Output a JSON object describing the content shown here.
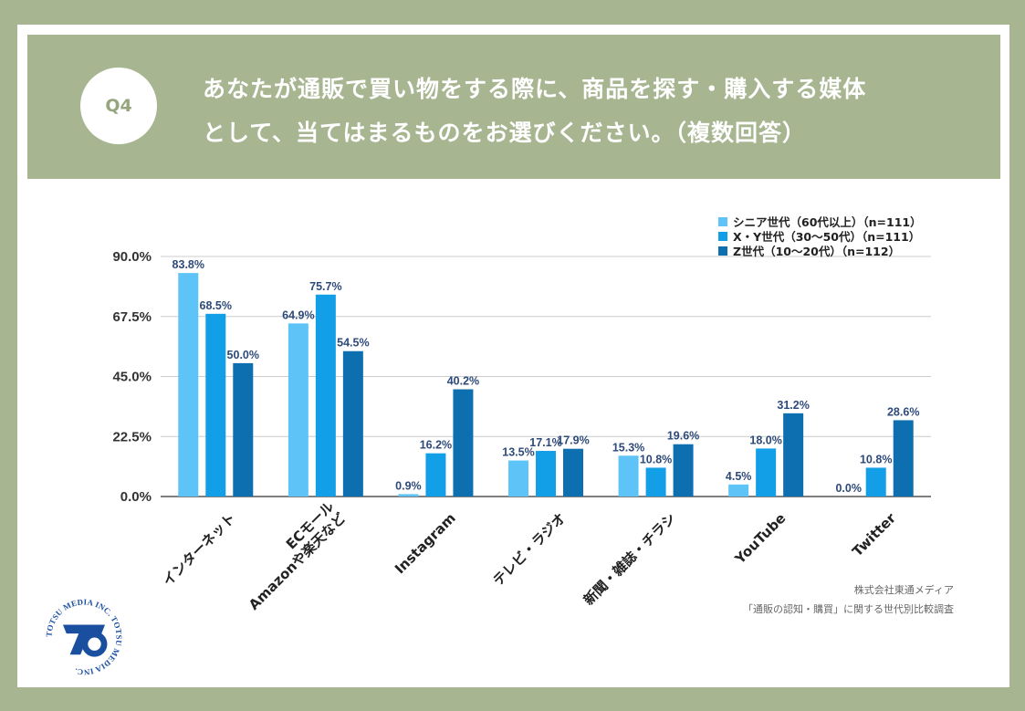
{
  "question": {
    "badge": "Q4",
    "line1": "あなたが通販で買い物をする際に、商品を探す・購入する媒体",
    "line2": "として、当てはまるものをお選びください。（複数回答）"
  },
  "credit": {
    "company": "株式会社東通メディア",
    "survey": "「通販の認知・購買」に関する世代別比較調査"
  },
  "logo": {
    "text": "TOTSU MEDIA INC. TOTSU MEDIA INC.",
    "color": "#1a4fa0"
  },
  "chart_data": {
    "type": "bar",
    "ylim": [
      0,
      90
    ],
    "yticks": [
      "0.0%",
      "22.5%",
      "45.0%",
      "67.5%",
      "90.0%"
    ],
    "ytick_values": [
      0,
      22.5,
      45,
      67.5,
      90
    ],
    "grid": true,
    "legend_position": "top-right",
    "categories": [
      [
        "インターネット"
      ],
      [
        "ECモール",
        "Amazonや楽天など"
      ],
      [
        "Instagram"
      ],
      [
        "テレビ・ラジオ"
      ],
      [
        "新聞・雑誌・チラシ"
      ],
      [
        "YouTube"
      ],
      [
        "Twitter"
      ]
    ],
    "series": [
      {
        "name": "シニア世代（60代以上）（n=111）",
        "color": "#5ec4f8",
        "values": [
          83.8,
          64.9,
          0.9,
          13.5,
          15.3,
          4.5,
          0.0
        ],
        "labels": [
          "83.8%",
          "64.9%",
          "0.9%",
          "13.5%",
          "15.3%",
          "4.5%",
          "0.0%"
        ]
      },
      {
        "name": "X・Y世代（30〜50代）（n=111）",
        "color": "#139ee8",
        "values": [
          68.5,
          75.7,
          16.2,
          17.1,
          10.8,
          18.0,
          10.8
        ],
        "labels": [
          "68.5%",
          "75.7%",
          "16.2%",
          "17.1%",
          "10.8%",
          "18.0%",
          "10.8%"
        ]
      },
      {
        "name": "Z世代（10〜20代）（n=112）",
        "color": "#0d6fb0",
        "values": [
          50.0,
          54.5,
          40.2,
          17.9,
          19.6,
          31.2,
          28.6
        ],
        "labels": [
          "50.0%",
          "54.5%",
          "40.2%",
          "17.9%",
          "19.6%",
          "31.2%",
          "28.6%"
        ]
      }
    ]
  }
}
